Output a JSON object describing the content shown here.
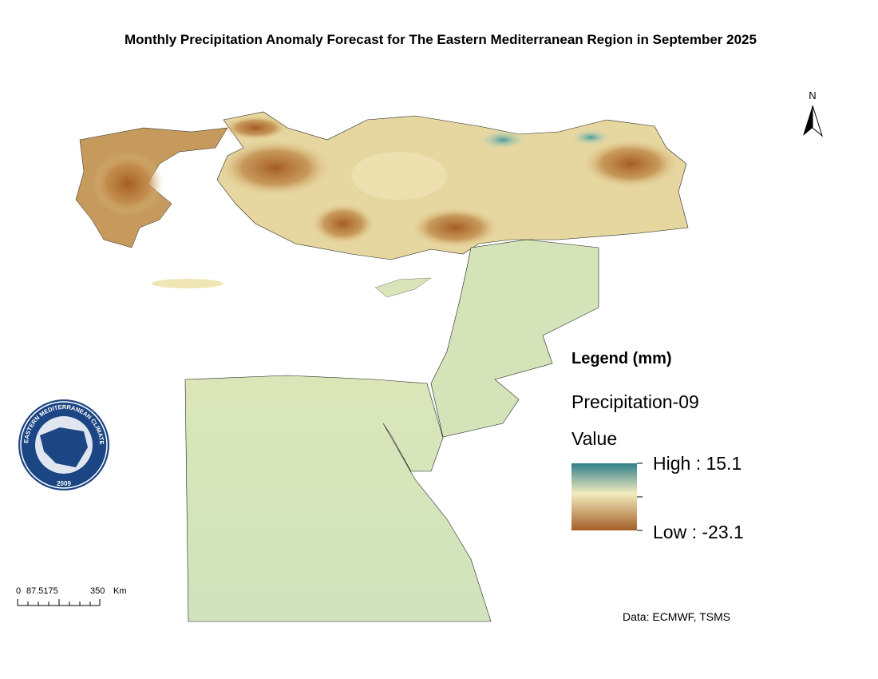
{
  "title": "Monthly Precipitation Anomaly Forecast for The Eastern Mediterranean Region in September 2025",
  "north": "N",
  "legend": {
    "heading": "Legend (mm)",
    "layer": "Precipitation-09",
    "field": "Value",
    "high": "High : 15.1",
    "low": "Low : -23.1"
  },
  "scale_bar": {
    "labels": [
      "0",
      "87.5175",
      "350"
    ],
    "unit": "Km"
  },
  "logo": {
    "ring_text": "EASTERN MEDITERRANEAN CLIMATE CENTRE",
    "year": "2009"
  },
  "source": "Data: ECMWF, TSMS"
}
